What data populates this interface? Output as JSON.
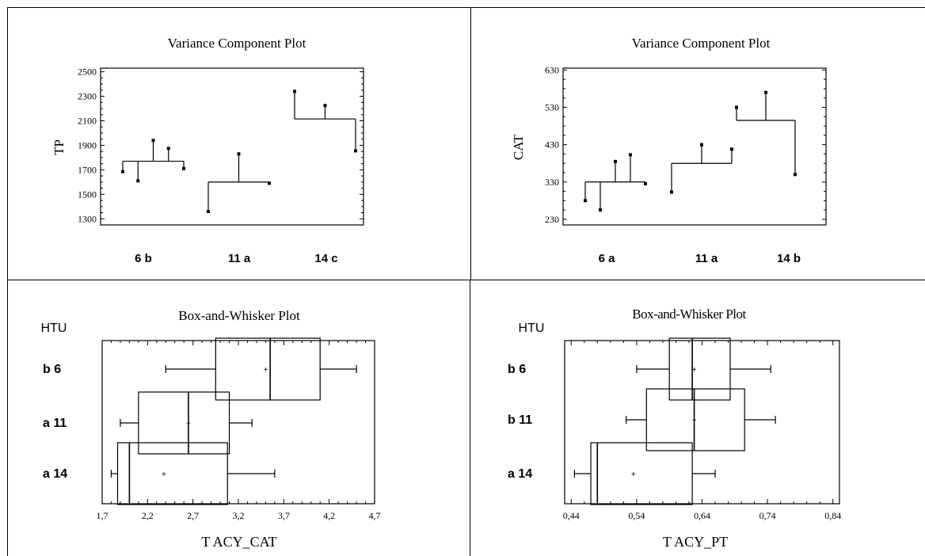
{
  "chart_data": [
    {
      "type": "variance-component",
      "title": "Variance Component Plot",
      "ylabel": "TP",
      "ylim": [
        1250,
        2530
      ],
      "yticks": [
        1300,
        1500,
        1700,
        1900,
        2100,
        2300,
        2500
      ],
      "grid": false,
      "groups": [
        {
          "label": "6  b",
          "mean": 1770,
          "values": [
            1685,
            1610,
            1940,
            1875,
            1710
          ]
        },
        {
          "label": "11 a",
          "mean": 1600,
          "values": [
            1360,
            1830,
            1590
          ]
        },
        {
          "label": "14 c",
          "mean": 2115,
          "values": [
            2340,
            2225,
            1855
          ]
        }
      ]
    },
    {
      "type": "variance-component",
      "title": "Variance Component Plot",
      "ylabel": "CAT",
      "ylim": [
        215,
        635
      ],
      "yticks": [
        230,
        330,
        430,
        530,
        630
      ],
      "grid": false,
      "groups": [
        {
          "label": "6  a",
          "mean": 330,
          "values": [
            280,
            255,
            385,
            403,
            325
          ]
        },
        {
          "label": "11 a",
          "mean": 380,
          "values": [
            303,
            430,
            418
          ]
        },
        {
          "label": "14 b",
          "mean": 495,
          "values": [
            530,
            570,
            350
          ]
        }
      ]
    },
    {
      "type": "box",
      "title": "Box-and-Whisker Plot",
      "xlabel": "T ACY_CAT",
      "group_axis_label": "HTU",
      "xlim": [
        1.7,
        4.7
      ],
      "xticks": [
        "1,7",
        "2,2",
        "2,7",
        "3,2",
        "3,7",
        "4,2",
        "4,7"
      ],
      "xtick_values": [
        1.7,
        2.2,
        2.7,
        3.2,
        3.7,
        4.2,
        4.7
      ],
      "boxes": [
        {
          "label": "b  6",
          "min": 2.4,
          "q1": 2.95,
          "median": 3.55,
          "q3": 4.1,
          "max": 4.5,
          "mean": 3.5
        },
        {
          "label": "a  11",
          "min": 1.9,
          "q1": 2.1,
          "median": 2.65,
          "q3": 3.1,
          "max": 3.35,
          "mean": 2.65
        },
        {
          "label": "a  14",
          "min": 1.8,
          "q1": 1.87,
          "median": 2.0,
          "q3": 3.08,
          "max": 3.6,
          "mean": 2.38
        }
      ]
    },
    {
      "type": "box",
      "title": "Box-and-Whisker Plot",
      "xlabel": "T ACY_PT",
      "group_axis_label": "HTU",
      "xlim": [
        0.43,
        0.85
      ],
      "xticks": [
        "0,44",
        "0,54",
        "0,64",
        "0,74",
        "0,84"
      ],
      "xtick_values": [
        0.44,
        0.54,
        0.64,
        0.74,
        0.84
      ],
      "boxes": [
        {
          "label": "b  6",
          "min": 0.54,
          "q1": 0.59,
          "median": 0.625,
          "q3": 0.683,
          "max": 0.745,
          "mean": 0.628
        },
        {
          "label": "b  11",
          "min": 0.524,
          "q1": 0.555,
          "median": 0.628,
          "q3": 0.705,
          "max": 0.752,
          "mean": 0.628
        },
        {
          "label": "a  14",
          "min": 0.445,
          "q1": 0.47,
          "median": 0.48,
          "q3": 0.625,
          "max": 0.66,
          "mean": 0.535
        }
      ]
    }
  ]
}
